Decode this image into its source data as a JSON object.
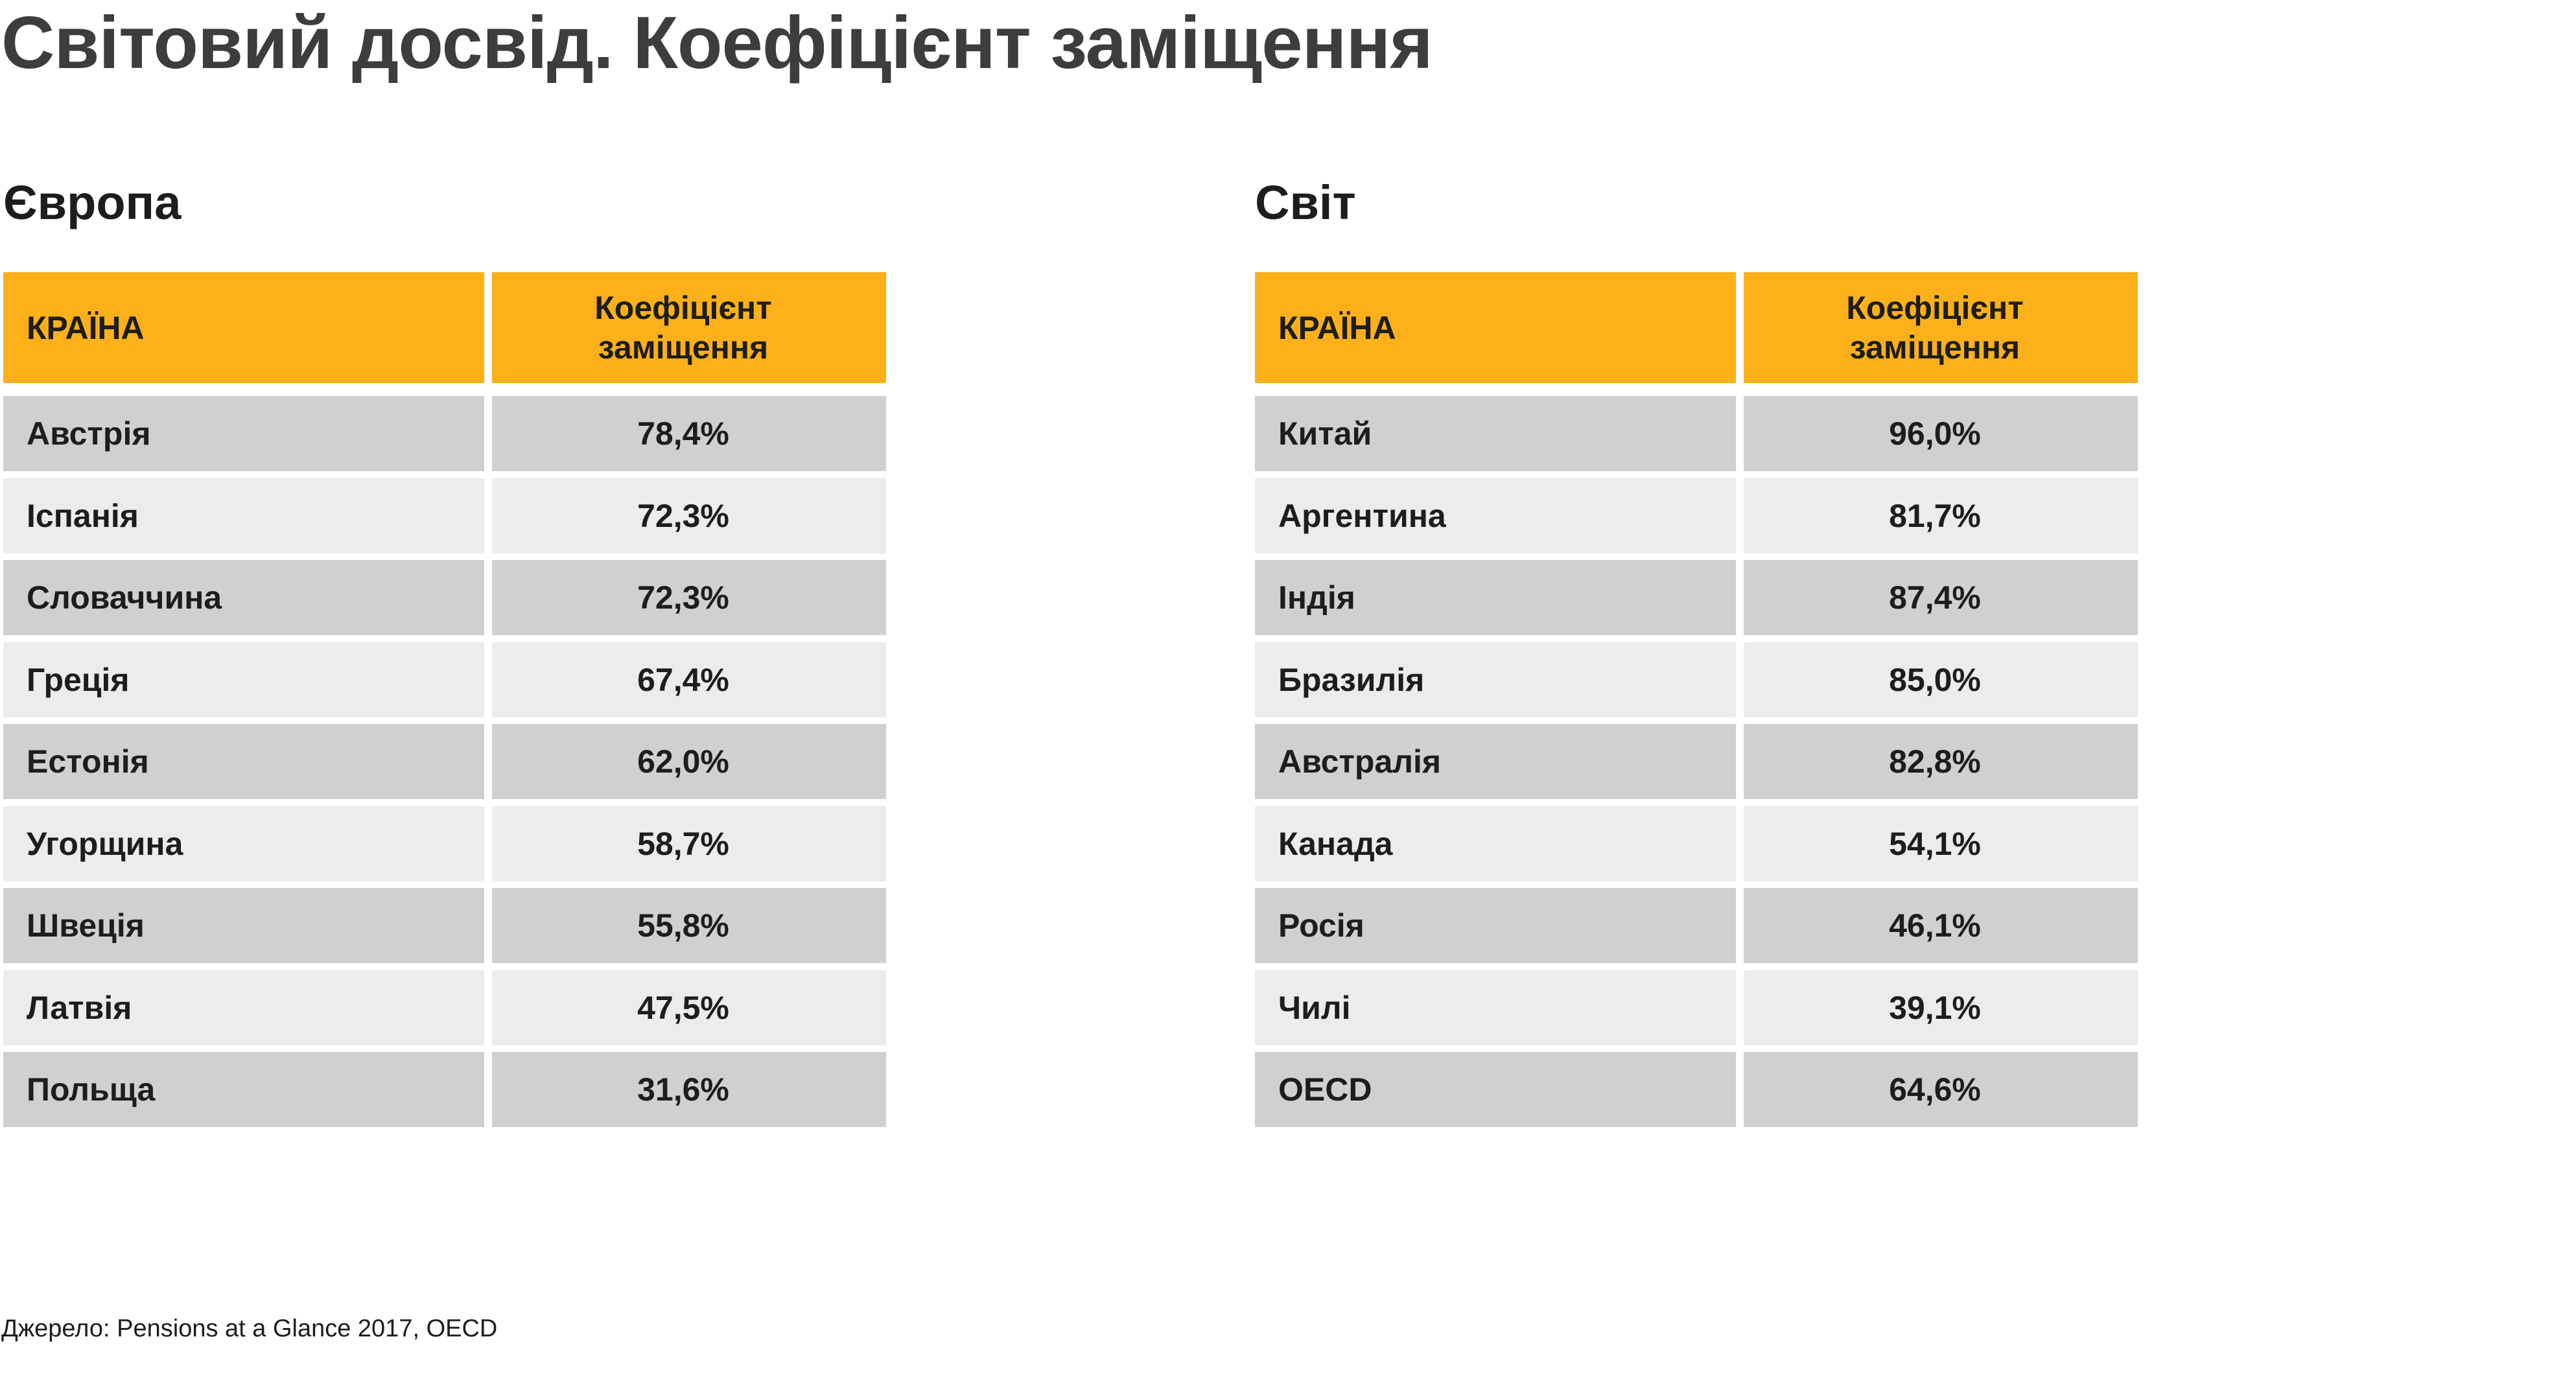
{
  "title": "Світовий досвід. Коефіцієнт заміщення",
  "source": "Джерело: Pensions at a Glance 2017, OECD",
  "colors": {
    "header": "#FCB019",
    "row_dark": "#D0D0D0",
    "row_light": "#ECECEC",
    "text": "#1D1D1B",
    "title": "#3D3D3D"
  },
  "chart_data": [
    {
      "type": "table",
      "title": "Європа",
      "columns": [
        "КРАЇНА",
        "Коефіцієнт заміщення"
      ],
      "rows": [
        {
          "country": "Австрія",
          "value": "78,4%"
        },
        {
          "country": "Іспанія",
          "value": "72,3%"
        },
        {
          "country": "Словаччина",
          "value": "72,3%"
        },
        {
          "country": "Греція",
          "value": "67,4%"
        },
        {
          "country": "Естонія",
          "value": "62,0%"
        },
        {
          "country": "Угорщина",
          "value": "58,7%"
        },
        {
          "country": "Швеція",
          "value": "55,8%"
        },
        {
          "country": "Латвія",
          "value": "47,5%"
        },
        {
          "country": "Польща",
          "value": "31,6%"
        }
      ]
    },
    {
      "type": "table",
      "title": "Світ",
      "columns": [
        "КРАЇНА",
        "Коефіцієнт заміщення"
      ],
      "rows": [
        {
          "country": "Китай",
          "value": "96,0%"
        },
        {
          "country": "Аргентина",
          "value": "81,7%"
        },
        {
          "country": "Індія",
          "value": "87,4%"
        },
        {
          "country": "Бразилія",
          "value": "85,0%"
        },
        {
          "country": "Австралія",
          "value": "82,8%"
        },
        {
          "country": "Канада",
          "value": "54,1%"
        },
        {
          "country": "Росія",
          "value": "46,1%"
        },
        {
          "country": "Чилі",
          "value": "39,1%"
        },
        {
          "country": "OECD",
          "value": "64,6%"
        }
      ]
    }
  ]
}
